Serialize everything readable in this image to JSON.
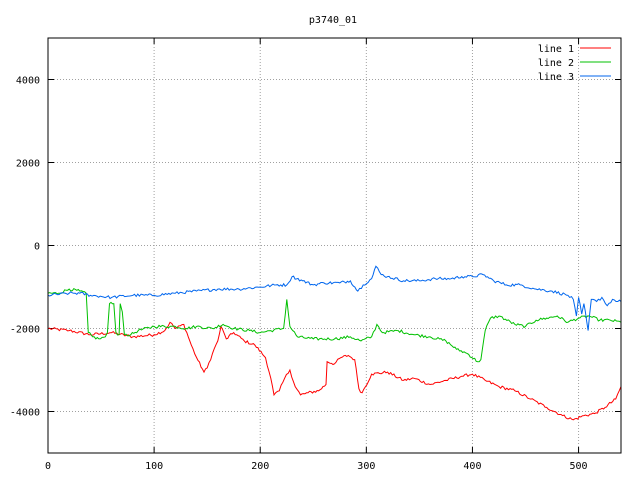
{
  "chart_data": {
    "type": "line",
    "title": "p3740_01",
    "xlabel": "",
    "ylabel": "",
    "xlim": [
      0,
      540
    ],
    "ylim": [
      -5000,
      5000
    ],
    "x_ticks": [
      0,
      100,
      200,
      300,
      400,
      500
    ],
    "y_ticks": [
      -4000,
      -2000,
      0,
      2000,
      4000
    ],
    "grid": true,
    "legend_position": "top-right",
    "series": [
      {
        "name": "line 1",
        "color": "#ff0000",
        "points": [
          [
            0,
            -2000
          ],
          [
            20,
            -2050
          ],
          [
            40,
            -2150
          ],
          [
            60,
            -2100
          ],
          [
            80,
            -2200
          ],
          [
            100,
            -2150
          ],
          [
            110,
            -2050
          ],
          [
            115,
            -1850
          ],
          [
            120,
            -2000
          ],
          [
            128,
            -1900
          ],
          [
            135,
            -2400
          ],
          [
            140,
            -2700
          ],
          [
            147,
            -3050
          ],
          [
            150,
            -2950
          ],
          [
            155,
            -2600
          ],
          [
            160,
            -2300
          ],
          [
            163,
            -1950
          ],
          [
            168,
            -2250
          ],
          [
            175,
            -2100
          ],
          [
            185,
            -2300
          ],
          [
            195,
            -2400
          ],
          [
            205,
            -2700
          ],
          [
            210,
            -3200
          ],
          [
            213,
            -3600
          ],
          [
            218,
            -3500
          ],
          [
            223,
            -3200
          ],
          [
            228,
            -3000
          ],
          [
            233,
            -3400
          ],
          [
            238,
            -3600
          ],
          [
            245,
            -3550
          ],
          [
            255,
            -3500
          ],
          [
            262,
            -3350
          ],
          [
            263,
            -2800
          ],
          [
            270,
            -2850
          ],
          [
            276,
            -2700
          ],
          [
            283,
            -2650
          ],
          [
            289,
            -2750
          ],
          [
            293,
            -3450
          ],
          [
            296,
            -3550
          ],
          [
            305,
            -3100
          ],
          [
            320,
            -3050
          ],
          [
            335,
            -3250
          ],
          [
            345,
            -3200
          ],
          [
            360,
            -3350
          ],
          [
            375,
            -3250
          ],
          [
            390,
            -3150
          ],
          [
            400,
            -3100
          ],
          [
            412,
            -3250
          ],
          [
            425,
            -3400
          ],
          [
            440,
            -3500
          ],
          [
            455,
            -3700
          ],
          [
            470,
            -3900
          ],
          [
            485,
            -4100
          ],
          [
            495,
            -4200
          ],
          [
            505,
            -4100
          ],
          [
            515,
            -4050
          ],
          [
            525,
            -3900
          ],
          [
            535,
            -3700
          ],
          [
            540,
            -3400
          ]
        ]
      },
      {
        "name": "line 2",
        "color": "#00c000",
        "points": [
          [
            0,
            -1150
          ],
          [
            10,
            -1150
          ],
          [
            20,
            -1050
          ],
          [
            30,
            -1100
          ],
          [
            36,
            -1150
          ],
          [
            38,
            -2100
          ],
          [
            42,
            -2200
          ],
          [
            48,
            -2250
          ],
          [
            54,
            -2200
          ],
          [
            56,
            -2100
          ],
          [
            58,
            -1400
          ],
          [
            62,
            -1400
          ],
          [
            64,
            -2100
          ],
          [
            67,
            -2150
          ],
          [
            68,
            -1400
          ],
          [
            70,
            -1600
          ],
          [
            72,
            -2150
          ],
          [
            78,
            -2150
          ],
          [
            85,
            -2050
          ],
          [
            100,
            -1950
          ],
          [
            120,
            -1950
          ],
          [
            130,
            -2000
          ],
          [
            140,
            -1950
          ],
          [
            155,
            -2000
          ],
          [
            165,
            -1900
          ],
          [
            175,
            -2000
          ],
          [
            190,
            -2050
          ],
          [
            200,
            -2100
          ],
          [
            210,
            -2050
          ],
          [
            222,
            -2000
          ],
          [
            225,
            -1300
          ],
          [
            228,
            -1950
          ],
          [
            235,
            -2200
          ],
          [
            250,
            -2250
          ],
          [
            270,
            -2250
          ],
          [
            285,
            -2200
          ],
          [
            295,
            -2300
          ],
          [
            305,
            -2200
          ],
          [
            310,
            -1900
          ],
          [
            315,
            -2100
          ],
          [
            330,
            -2050
          ],
          [
            345,
            -2150
          ],
          [
            360,
            -2200
          ],
          [
            375,
            -2300
          ],
          [
            385,
            -2500
          ],
          [
            395,
            -2600
          ],
          [
            405,
            -2800
          ],
          [
            408,
            -2750
          ],
          [
            412,
            -2050
          ],
          [
            417,
            -1750
          ],
          [
            425,
            -1700
          ],
          [
            440,
            -1900
          ],
          [
            450,
            -1950
          ],
          [
            460,
            -1800
          ],
          [
            470,
            -1750
          ],
          [
            480,
            -1700
          ],
          [
            490,
            -1850
          ],
          [
            500,
            -1750
          ],
          [
            510,
            -1700
          ],
          [
            520,
            -1800
          ],
          [
            530,
            -1800
          ],
          [
            540,
            -1850
          ]
        ]
      },
      {
        "name": "line 3",
        "color": "#0066ee",
        "points": [
          [
            0,
            -1200
          ],
          [
            20,
            -1150
          ],
          [
            30,
            -1150
          ],
          [
            40,
            -1200
          ],
          [
            60,
            -1250
          ],
          [
            80,
            -1200
          ],
          [
            100,
            -1200
          ],
          [
            120,
            -1150
          ],
          [
            140,
            -1100
          ],
          [
            160,
            -1050
          ],
          [
            180,
            -1050
          ],
          [
            200,
            -1000
          ],
          [
            215,
            -950
          ],
          [
            225,
            -950
          ],
          [
            230,
            -750
          ],
          [
            240,
            -850
          ],
          [
            250,
            -950
          ],
          [
            260,
            -900
          ],
          [
            275,
            -900
          ],
          [
            285,
            -850
          ],
          [
            292,
            -1100
          ],
          [
            297,
            -950
          ],
          [
            305,
            -800
          ],
          [
            309,
            -500
          ],
          [
            314,
            -700
          ],
          [
            320,
            -750
          ],
          [
            335,
            -850
          ],
          [
            350,
            -850
          ],
          [
            365,
            -800
          ],
          [
            380,
            -800
          ],
          [
            390,
            -750
          ],
          [
            400,
            -750
          ],
          [
            410,
            -700
          ],
          [
            420,
            -850
          ],
          [
            432,
            -950
          ],
          [
            445,
            -950
          ],
          [
            460,
            -1050
          ],
          [
            475,
            -1100
          ],
          [
            490,
            -1200
          ],
          [
            495,
            -1300
          ],
          [
            498,
            -1700
          ],
          [
            500,
            -1250
          ],
          [
            503,
            -1650
          ],
          [
            505,
            -1400
          ],
          [
            509,
            -2050
          ],
          [
            512,
            -1300
          ],
          [
            517,
            -1350
          ],
          [
            522,
            -1250
          ],
          [
            527,
            -1450
          ],
          [
            532,
            -1300
          ],
          [
            537,
            -1350
          ],
          [
            540,
            -1350
          ]
        ]
      }
    ]
  }
}
